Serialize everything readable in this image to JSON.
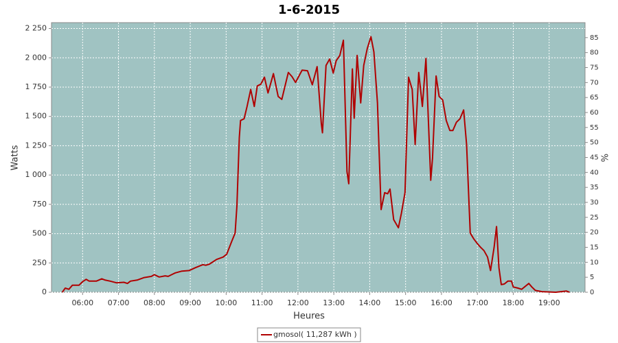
{
  "chart_data": {
    "type": "line",
    "title": "1-6-2015",
    "x_label": "Heures",
    "y_label": "Watts",
    "y2_label": "%",
    "x": [
      "05:26",
      "05:31",
      "05:37",
      "05:43",
      "05:54",
      "06:00",
      "06:06",
      "06:11",
      "06:23",
      "06:32",
      "06:37",
      "06:46",
      "06:57",
      "07:09",
      "07:15",
      "07:20",
      "07:32",
      "07:43",
      "07:55",
      "08:00",
      "08:08",
      "08:18",
      "08:23",
      "08:35",
      "08:46",
      "08:58",
      "09:09",
      "09:21",
      "09:26",
      "09:32",
      "09:44",
      "09:55",
      "10:01",
      "10:09",
      "10:15",
      "10:18",
      "10:22",
      "10:24",
      "10:30",
      "10:35",
      "10:41",
      "10:47",
      "10:52",
      "10:58",
      "11:04",
      "11:10",
      "11:19",
      "11:27",
      "11:33",
      "11:38",
      "11:44",
      "11:50",
      "11:56",
      "12:07",
      "12:16",
      "12:24",
      "12:32",
      "12:39",
      "12:41",
      "12:47",
      "12:53",
      "12:59",
      "13:04",
      "13:10",
      "13:16",
      "13:22",
      "13:25",
      "13:31",
      "13:34",
      "13:39",
      "13:45",
      "13:50",
      "13:56",
      "14:02",
      "14:07",
      "14:13",
      "14:19",
      "14:25",
      "14:30",
      "14:34",
      "14:40",
      "14:48",
      "14:53",
      "14:59",
      "15:05",
      "15:11",
      "15:16",
      "15:22",
      "15:28",
      "15:34",
      "15:42",
      "15:45",
      "15:51",
      "15:56",
      "16:02",
      "16:08",
      "16:14",
      "16:19",
      "16:25",
      "16:31",
      "16:37",
      "16:42",
      "16:48",
      "16:54",
      "17:00",
      "17:05",
      "17:11",
      "17:17",
      "17:22",
      "17:28",
      "17:32",
      "17:36",
      "17:40",
      "17:45",
      "17:51",
      "17:57",
      "18:00",
      "18:08",
      "18:14",
      "18:26",
      "18:31",
      "18:37",
      "18:48",
      "19:11",
      "19:29",
      "19:34"
    ],
    "series": [
      {
        "name": "gmosol( 11,287 kWh )",
        "color": "#b00000",
        "values": [
          0,
          35,
          25,
          60,
          60,
          90,
          110,
          95,
          95,
          115,
          105,
          95,
          80,
          85,
          75,
          95,
          105,
          125,
          135,
          150,
          130,
          140,
          135,
          165,
          180,
          185,
          210,
          235,
          230,
          240,
          280,
          300,
          325,
          430,
          505,
          735,
          1320,
          1465,
          1480,
          1585,
          1730,
          1585,
          1760,
          1775,
          1835,
          1700,
          1865,
          1670,
          1645,
          1750,
          1875,
          1840,
          1790,
          1895,
          1890,
          1770,
          1925,
          1440,
          1360,
          1935,
          1990,
          1870,
          1975,
          2020,
          2150,
          1030,
          925,
          1905,
          1485,
          2020,
          1615,
          1935,
          2080,
          2180,
          2050,
          1615,
          705,
          850,
          840,
          880,
          620,
          550,
          675,
          850,
          1835,
          1730,
          1260,
          1875,
          1585,
          1995,
          955,
          1145,
          1845,
          1670,
          1640,
          1465,
          1380,
          1380,
          1450,
          1480,
          1555,
          1260,
          505,
          455,
          415,
          385,
          355,
          300,
          185,
          385,
          560,
          210,
          65,
          70,
          95,
          95,
          45,
          35,
          25,
          75,
          45,
          15,
          5,
          0,
          10,
          0
        ]
      }
    ],
    "xlim": [
      "05:08",
      "20:00"
    ],
    "xticks": [
      "06:00",
      "07:00",
      "08:00",
      "09:00",
      "10:00",
      "11:00",
      "12:00",
      "13:00",
      "14:00",
      "15:00",
      "16:00",
      "17:00",
      "18:00",
      "19:00"
    ],
    "ylim": [
      0,
      2300
    ],
    "yticks": [
      0,
      250,
      500,
      750,
      {
        "value": 1000,
        "label": "1 000"
      },
      {
        "value": 1250,
        "label": "1 250"
      },
      {
        "value": 1500,
        "label": "1 500"
      },
      {
        "value": 1750,
        "label": "1 750"
      },
      {
        "value": 2000,
        "label": "2 000"
      },
      {
        "value": 2250,
        "label": "2 250"
      }
    ],
    "y2lim": [
      0,
      90
    ],
    "y2ticks": [
      0,
      5,
      10,
      15,
      20,
      25,
      30,
      35,
      40,
      45,
      50,
      55,
      60,
      65,
      70,
      75,
      80,
      85
    ],
    "grid": true,
    "background": "#a0c3c2",
    "legend": "bottom"
  }
}
